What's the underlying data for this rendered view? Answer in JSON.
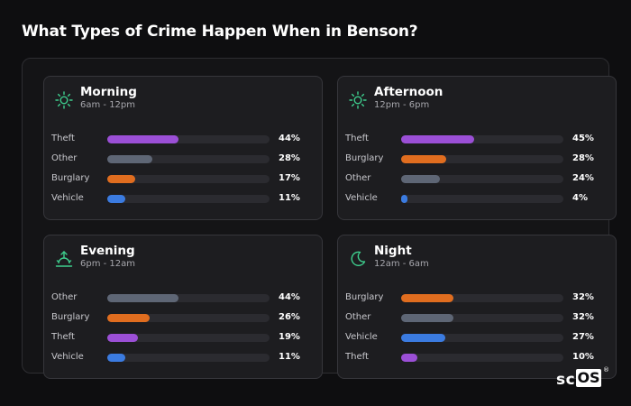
{
  "title": "What Types of Crime Happen When in Benson?",
  "brand": {
    "prefix": "sc",
    "boxed": "OS",
    "mark": "®"
  },
  "colors": {
    "accent_icon": "#3ecf8e",
    "Theft": "#9b4fd6",
    "Other": "#5e6675",
    "Burglary": "#e06d1f",
    "Vehicle": "#3b7be0",
    "track": "#2b2b30"
  },
  "chart_data": [
    {
      "type": "bar",
      "orientation": "horizontal",
      "title": "Morning",
      "subtitle": "6am - 12pm",
      "icon": "sun-icon",
      "xlim": [
        0,
        100
      ],
      "categories": [
        "Theft",
        "Other",
        "Burglary",
        "Vehicle"
      ],
      "values": [
        44,
        28,
        17,
        11
      ],
      "value_labels": [
        "44%",
        "28%",
        "17%",
        "11%"
      ]
    },
    {
      "type": "bar",
      "orientation": "horizontal",
      "title": "Afternoon",
      "subtitle": "12pm - 6pm",
      "icon": "sun-icon",
      "xlim": [
        0,
        100
      ],
      "categories": [
        "Theft",
        "Burglary",
        "Other",
        "Vehicle"
      ],
      "values": [
        45,
        28,
        24,
        4
      ],
      "value_labels": [
        "45%",
        "28%",
        "24%",
        "4%"
      ]
    },
    {
      "type": "bar",
      "orientation": "horizontal",
      "title": "Evening",
      "subtitle": "6pm - 12am",
      "icon": "sunset-icon",
      "xlim": [
        0,
        100
      ],
      "categories": [
        "Other",
        "Burglary",
        "Theft",
        "Vehicle"
      ],
      "values": [
        44,
        26,
        19,
        11
      ],
      "value_labels": [
        "44%",
        "26%",
        "19%",
        "11%"
      ]
    },
    {
      "type": "bar",
      "orientation": "horizontal",
      "title": "Night",
      "subtitle": "12am - 6am",
      "icon": "moon-icon",
      "xlim": [
        0,
        100
      ],
      "categories": [
        "Burglary",
        "Other",
        "Vehicle",
        "Theft"
      ],
      "values": [
        32,
        32,
        27,
        10
      ],
      "value_labels": [
        "32%",
        "32%",
        "27%",
        "10%"
      ]
    }
  ]
}
